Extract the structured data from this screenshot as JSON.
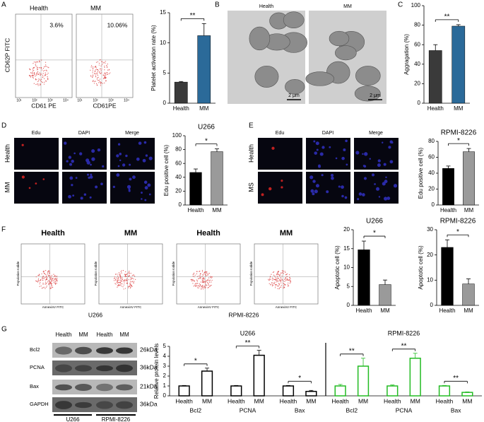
{
  "panels": [
    "A",
    "B",
    "C",
    "D",
    "E",
    "F",
    "G"
  ],
  "flow_A": {
    "plots": [
      {
        "title": "Health",
        "percent": "3.6%",
        "x_label": "CD61 PE"
      },
      {
        "title": "MM",
        "percent": "10.06%",
        "x_label": "CD61PE"
      }
    ],
    "y_label": "CD62P FITC",
    "ticks": [
      "10¹",
      "10²",
      "10³",
      "10⁴"
    ]
  },
  "micrograph_B": {
    "images": [
      {
        "title": "Health",
        "scale": "2 μm"
      },
      {
        "title": "MM",
        "scale": "2 μm"
      }
    ]
  },
  "fluorescence": [
    {
      "columns": [
        "Edu",
        "DAPI",
        "Merge"
      ],
      "rows": [
        "Health",
        "MM"
      ]
    },
    {
      "columns": [
        "Edu",
        "DAPI",
        "Merge"
      ],
      "rows": [
        "Health",
        "MS"
      ]
    }
  ],
  "flow_F": {
    "plots": [
      {
        "title": "Health"
      },
      {
        "title": "MM"
      },
      {
        "title": "Health"
      },
      {
        "title": "MM"
      }
    ],
    "y_label": "Population Iodide",
    "x_label": "AnnexinV FITC",
    "groups": [
      "U266",
      "RPMI-8226"
    ]
  },
  "blot_G": {
    "columns": [
      "Health",
      "MM",
      "Health",
      "MM"
    ],
    "rows": [
      {
        "name": "Bcl2",
        "size": "26kDa"
      },
      {
        "name": "PCNA",
        "size": "36kDa"
      },
      {
        "name": "Bax",
        "size": "21kDa"
      },
      {
        "name": "GAPDH",
        "size": "36kDa"
      }
    ],
    "groups": [
      "U266",
      "RPMI-8226"
    ]
  },
  "chart_data": [
    {
      "type": "bar",
      "y_label": "Platelet activation rate (%)",
      "categories": [
        "Health",
        "MM"
      ],
      "values": [
        3.5,
        11.2
      ],
      "errors": [
        0.1,
        2.0
      ],
      "colors": [
        "#3a3a3a",
        "#2b6a99"
      ],
      "ylim": [
        0,
        15
      ],
      "yticks": [
        0,
        5,
        10,
        15
      ],
      "significance": "**"
    },
    {
      "type": "bar",
      "y_label": "Aggragation (%)",
      "categories": [
        "Health",
        "MM"
      ],
      "values": [
        54,
        79
      ],
      "errors": [
        6,
        1.5
      ],
      "colors": [
        "#3a3a3a",
        "#2b6a99"
      ],
      "ylim": [
        0,
        100
      ],
      "yticks": [
        0,
        20,
        40,
        60,
        80,
        100
      ],
      "significance": "**"
    },
    {
      "type": "bar",
      "title": "U266",
      "y_label": "Edu positive cell (%)",
      "categories": [
        "Health",
        "MM"
      ],
      "values": [
        47,
        77
      ],
      "errors": [
        5,
        4
      ],
      "colors": [
        "#000000",
        "#9a9a9a"
      ],
      "ylim": [
        0,
        100
      ],
      "yticks": [
        0,
        20,
        40,
        60,
        80,
        100
      ],
      "significance": "*"
    },
    {
      "type": "bar",
      "title": "RPMI-8226",
      "y_label": "Edu positive cell (%)",
      "categories": [
        "Health",
        "MM"
      ],
      "values": [
        46,
        67
      ],
      "errors": [
        3,
        4
      ],
      "colors": [
        "#000000",
        "#9a9a9a"
      ],
      "ylim": [
        0,
        80
      ],
      "yticks": [
        0,
        20,
        40,
        60,
        80
      ],
      "significance": "*"
    },
    {
      "type": "bar",
      "title": "U266",
      "y_label": "Apoptotic cell (%)",
      "categories": [
        "Health",
        "MM"
      ],
      "values": [
        14.7,
        5.5
      ],
      "errors": [
        2.3,
        1.2
      ],
      "colors": [
        "#000000",
        "#9a9a9a"
      ],
      "ylim": [
        0,
        20
      ],
      "yticks": [
        0,
        5,
        10,
        15,
        20
      ],
      "significance": "*"
    },
    {
      "type": "bar",
      "title": "RPMI-8226",
      "y_label": "Apoptotic cell (%)",
      "categories": [
        "Health",
        "MM"
      ],
      "values": [
        23,
        8.5
      ],
      "errors": [
        3,
        2
      ],
      "colors": [
        "#000000",
        "#9a9a9a"
      ],
      "ylim": [
        0,
        30
      ],
      "yticks": [
        0,
        10,
        20,
        30
      ],
      "significance": "*"
    },
    {
      "type": "grouped_bar",
      "y_label": "Relative protein levels",
      "ylim": [
        0,
        5
      ],
      "yticks": [
        0,
        1,
        2,
        3,
        4,
        5
      ],
      "groups": [
        {
          "title": "U266",
          "color": "#000000",
          "items": [
            {
              "name": "Bcl2",
              "categories": [
                "Health",
                "MM"
              ],
              "values": [
                1,
                2.5
              ],
              "errors": [
                0.05,
                0.3
              ],
              "significance": "*"
            },
            {
              "name": "PCNA",
              "categories": [
                "Health",
                "MM"
              ],
              "values": [
                1,
                4.1
              ],
              "errors": [
                0.05,
                0.5
              ],
              "significance": "**"
            },
            {
              "name": "Bax",
              "categories": [
                "Health",
                "MM"
              ],
              "values": [
                1,
                0.45
              ],
              "errors": [
                0.05,
                0.1
              ],
              "significance": "*"
            }
          ]
        },
        {
          "title": "RPMI-8226",
          "color": "#22bb22",
          "items": [
            {
              "name": "Bcl2",
              "categories": [
                "Health",
                "MM"
              ],
              "values": [
                1,
                3.0
              ],
              "errors": [
                0.15,
                0.8
              ],
              "significance": "**"
            },
            {
              "name": "PCNA",
              "categories": [
                "Health",
                "MM"
              ],
              "values": [
                1,
                3.8
              ],
              "errors": [
                0.1,
                0.5
              ],
              "significance": "**"
            },
            {
              "name": "Bax",
              "categories": [
                "Health",
                "MM"
              ],
              "values": [
                1,
                0.35
              ],
              "errors": [
                0.05,
                0.05
              ],
              "significance": "**"
            }
          ]
        }
      ]
    }
  ]
}
